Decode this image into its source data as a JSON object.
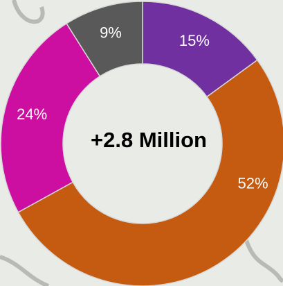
{
  "chart_data": {
    "type": "donut",
    "center_label": "+2.8 Million",
    "values": [
      15,
      52,
      24,
      9
    ],
    "value_labels": [
      "15%",
      "52%",
      "24%",
      "9%"
    ],
    "colors": [
      "#7030a0",
      "#c55a11",
      "#cc0fa0",
      "#595959"
    ]
  }
}
